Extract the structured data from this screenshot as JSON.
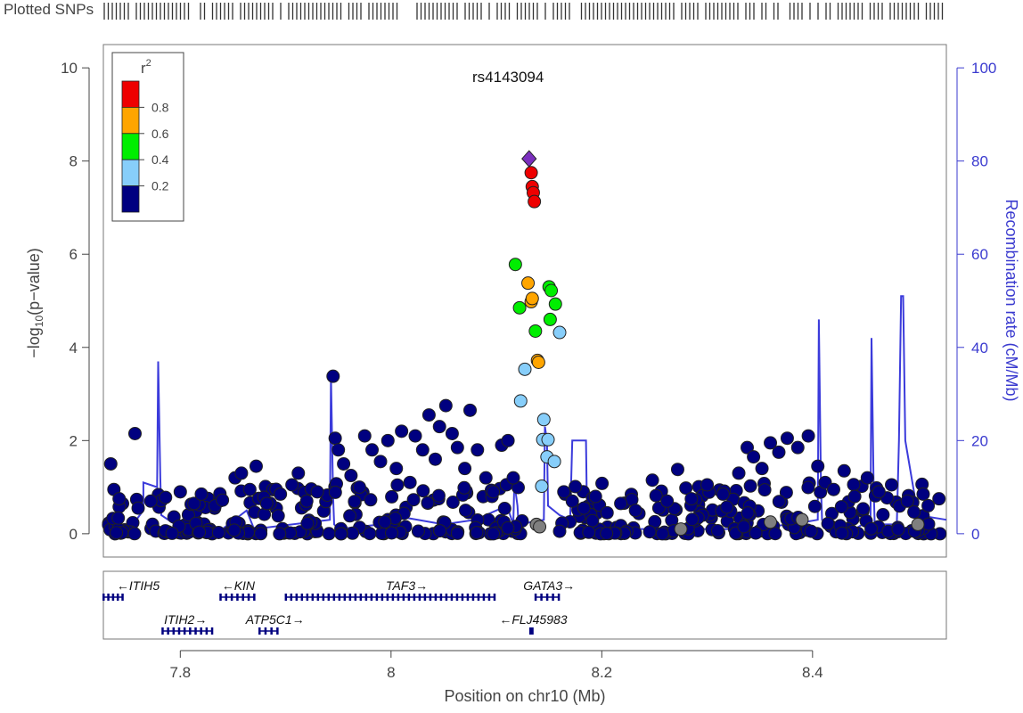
{
  "chart_data": {
    "type": "scatter",
    "title": "rs4143094",
    "xlabel": "Position on chr10 (Mb)",
    "ylabel": "-log10(p-value)",
    "ylabel_right": "Recombination rate (cM/Mb)",
    "xlim": [
      7.727,
      8.527
    ],
    "ylim": [
      -0.5,
      10.5
    ],
    "ylim_right": [
      -5,
      105
    ],
    "x_ticks": [
      7.8,
      8,
      8.2,
      8.4
    ],
    "x_tick_labels": [
      "7.8",
      "8",
      "8.2",
      "8.4"
    ],
    "y_ticks": [
      0,
      2,
      4,
      6,
      8,
      10
    ],
    "y2_ticks": [
      0,
      20,
      40,
      60,
      80,
      100
    ],
    "plotted_snps_label": "Plotted SNPs",
    "index_snp": {
      "name": "rs4143094",
      "x": 8.131,
      "y": 8.05,
      "color": "#7b2fbe",
      "shape": "diamond"
    },
    "legend": {
      "title": "r",
      "title_sup": "2",
      "position": "top-left",
      "bins": [
        {
          "range": [
            0.8,
            1.0
          ],
          "color": "#ee0000"
        },
        {
          "range": [
            0.6,
            0.8
          ],
          "color": "#ffa500"
        },
        {
          "range": [
            0.4,
            0.6
          ],
          "color": "#00ee00"
        },
        {
          "range": [
            0.2,
            0.4
          ],
          "color": "#87cefa"
        },
        {
          "range": [
            0.0,
            0.2
          ],
          "color": "#000080"
        }
      ],
      "tick_labels": [
        "0.8",
        "0.6",
        "0.4",
        "0.2"
      ]
    },
    "colors": {
      "r2_08_10": "#ee0000",
      "r2_06_08": "#ffa500",
      "r2_04_06": "#00ee00",
      "r2_02_04": "#87cefa",
      "r2_00_02": "#000080",
      "no_ld": "#7f7f7f",
      "recombination": "#3b3bdb"
    },
    "highlighted_points": [
      {
        "x": 8.133,
        "y": 7.75,
        "r2_bin": "0.8-1.0"
      },
      {
        "x": 8.134,
        "y": 7.45,
        "r2_bin": "0.8-1.0"
      },
      {
        "x": 8.135,
        "y": 7.32,
        "r2_bin": "0.8-1.0"
      },
      {
        "x": 8.136,
        "y": 7.13,
        "r2_bin": "0.8-1.0"
      },
      {
        "x": 8.13,
        "y": 5.38,
        "r2_bin": "0.6-0.8"
      },
      {
        "x": 8.133,
        "y": 4.98,
        "r2_bin": "0.6-0.8"
      },
      {
        "x": 8.134,
        "y": 5.05,
        "r2_bin": "0.6-0.8"
      },
      {
        "x": 8.139,
        "y": 3.72,
        "r2_bin": "0.6-0.8"
      },
      {
        "x": 8.14,
        "y": 3.68,
        "r2_bin": "0.6-0.8"
      },
      {
        "x": 8.118,
        "y": 5.78,
        "r2_bin": "0.4-0.6"
      },
      {
        "x": 8.122,
        "y": 4.85,
        "r2_bin": "0.4-0.6"
      },
      {
        "x": 8.15,
        "y": 5.3,
        "r2_bin": "0.4-0.6"
      },
      {
        "x": 8.152,
        "y": 5.22,
        "r2_bin": "0.4-0.6"
      },
      {
        "x": 8.156,
        "y": 4.93,
        "r2_bin": "0.4-0.6"
      },
      {
        "x": 8.137,
        "y": 4.35,
        "r2_bin": "0.4-0.6"
      },
      {
        "x": 8.151,
        "y": 4.6,
        "r2_bin": "0.4-0.6"
      },
      {
        "x": 8.16,
        "y": 4.32,
        "r2_bin": "0.2-0.4"
      },
      {
        "x": 8.127,
        "y": 3.53,
        "r2_bin": "0.2-0.4"
      },
      {
        "x": 8.123,
        "y": 2.85,
        "r2_bin": "0.2-0.4"
      },
      {
        "x": 8.145,
        "y": 2.45,
        "r2_bin": "0.2-0.4"
      },
      {
        "x": 8.144,
        "y": 2.02,
        "r2_bin": "0.2-0.4"
      },
      {
        "x": 8.149,
        "y": 2.02,
        "r2_bin": "0.2-0.4"
      },
      {
        "x": 8.148,
        "y": 1.65,
        "r2_bin": "0.2-0.4"
      },
      {
        "x": 8.155,
        "y": 1.55,
        "r2_bin": "0.2-0.4"
      },
      {
        "x": 8.143,
        "y": 1.02,
        "r2_bin": "0.2-0.4"
      }
    ],
    "low_ld_points": [
      {
        "x": 7.734,
        "y": 1.5
      },
      {
        "x": 7.757,
        "y": 2.15
      },
      {
        "x": 7.737,
        "y": 0.95
      },
      {
        "x": 7.742,
        "y": 0.75
      },
      {
        "x": 7.76,
        "y": 0.55
      },
      {
        "x": 7.772,
        "y": 0.7
      },
      {
        "x": 7.786,
        "y": 0.78
      },
      {
        "x": 7.8,
        "y": 0.9
      },
      {
        "x": 7.813,
        "y": 0.65
      },
      {
        "x": 7.82,
        "y": 0.85
      },
      {
        "x": 7.833,
        "y": 0.6
      },
      {
        "x": 7.84,
        "y": 0.72
      },
      {
        "x": 7.852,
        "y": 1.2
      },
      {
        "x": 7.858,
        "y": 1.3
      },
      {
        "x": 7.866,
        "y": 0.95
      },
      {
        "x": 7.872,
        "y": 1.45
      },
      {
        "x": 7.882,
        "y": 0.65
      },
      {
        "x": 7.895,
        "y": 0.85
      },
      {
        "x": 7.906,
        "y": 1.05
      },
      {
        "x": 7.912,
        "y": 1.3
      },
      {
        "x": 7.92,
        "y": 0.7
      },
      {
        "x": 7.93,
        "y": 0.9
      },
      {
        "x": 7.945,
        "y": 3.38
      },
      {
        "x": 7.947,
        "y": 2.05
      },
      {
        "x": 7.95,
        "y": 1.8
      },
      {
        "x": 7.955,
        "y": 1.5
      },
      {
        "x": 7.962,
        "y": 1.25
      },
      {
        "x": 7.97,
        "y": 1.0
      },
      {
        "x": 7.975,
        "y": 2.1
      },
      {
        "x": 7.982,
        "y": 1.8
      },
      {
        "x": 7.99,
        "y": 1.55
      },
      {
        "x": 7.997,
        "y": 2.0
      },
      {
        "x": 8.005,
        "y": 1.4
      },
      {
        "x": 8.01,
        "y": 2.2
      },
      {
        "x": 8.018,
        "y": 1.1
      },
      {
        "x": 8.023,
        "y": 2.1
      },
      {
        "x": 8.03,
        "y": 1.8
      },
      {
        "x": 8.036,
        "y": 2.55
      },
      {
        "x": 8.042,
        "y": 1.6
      },
      {
        "x": 8.046,
        "y": 2.3
      },
      {
        "x": 8.052,
        "y": 2.75
      },
      {
        "x": 8.058,
        "y": 2.15
      },
      {
        "x": 8.063,
        "y": 1.85
      },
      {
        "x": 8.07,
        "y": 1.4
      },
      {
        "x": 8.075,
        "y": 2.65
      },
      {
        "x": 8.082,
        "y": 1.8
      },
      {
        "x": 8.09,
        "y": 1.2
      },
      {
        "x": 8.097,
        "y": 0.9
      },
      {
        "x": 8.105,
        "y": 1.9
      },
      {
        "x": 8.111,
        "y": 2.0
      },
      {
        "x": 8.116,
        "y": 1.2
      },
      {
        "x": 8.164,
        "y": 0.9
      },
      {
        "x": 8.172,
        "y": 0.7
      },
      {
        "x": 8.183,
        "y": 0.55
      },
      {
        "x": 8.194,
        "y": 0.8
      },
      {
        "x": 8.205,
        "y": 0.45
      },
      {
        "x": 8.218,
        "y": 0.65
      },
      {
        "x": 8.232,
        "y": 0.5
      },
      {
        "x": 8.248,
        "y": 1.15
      },
      {
        "x": 8.262,
        "y": 0.7
      },
      {
        "x": 8.272,
        "y": 1.38
      },
      {
        "x": 8.285,
        "y": 0.75
      },
      {
        "x": 8.3,
        "y": 1.05
      },
      {
        "x": 8.315,
        "y": 0.85
      },
      {
        "x": 8.33,
        "y": 1.3
      },
      {
        "x": 8.338,
        "y": 1.85
      },
      {
        "x": 8.344,
        "y": 1.65
      },
      {
        "x": 8.352,
        "y": 1.4
      },
      {
        "x": 8.36,
        "y": 1.95
      },
      {
        "x": 8.368,
        "y": 1.75
      },
      {
        "x": 8.376,
        "y": 2.05
      },
      {
        "x": 8.386,
        "y": 1.85
      },
      {
        "x": 8.396,
        "y": 2.1
      },
      {
        "x": 8.405,
        "y": 1.45
      },
      {
        "x": 8.412,
        "y": 1.1
      },
      {
        "x": 8.42,
        "y": 0.95
      },
      {
        "x": 8.43,
        "y": 1.35
      },
      {
        "x": 8.44,
        "y": 0.8
      },
      {
        "x": 8.452,
        "y": 1.2
      },
      {
        "x": 8.463,
        "y": 0.9
      },
      {
        "x": 8.475,
        "y": 1.05
      },
      {
        "x": 8.49,
        "y": 0.7
      },
      {
        "x": 8.505,
        "y": 0.85
      },
      {
        "x": 8.52,
        "y": 0.75
      }
    ],
    "grey_points": [
      {
        "x": 8.138,
        "y": 0.2
      },
      {
        "x": 8.141,
        "y": 0.15
      },
      {
        "x": 8.275,
        "y": 0.1
      },
      {
        "x": 8.36,
        "y": 0.25
      },
      {
        "x": 8.39,
        "y": 0.3
      },
      {
        "x": 8.5,
        "y": 0.2
      }
    ],
    "recombination_rate": {
      "x": [
        7.727,
        7.755,
        7.765,
        7.765,
        7.778,
        7.779,
        7.781,
        7.782,
        7.795,
        7.84,
        7.863,
        7.87,
        7.942,
        7.943,
        7.945,
        7.946,
        7.95,
        7.99,
        8.0,
        8.05,
        8.08,
        8.11,
        8.116,
        8.117,
        8.12,
        8.121,
        8.145,
        8.146,
        8.148,
        8.149,
        8.16,
        8.17,
        8.172,
        8.185,
        8.186,
        8.21,
        8.26,
        8.3,
        8.33,
        8.38,
        8.405,
        8.406,
        8.408,
        8.409,
        8.44,
        8.455,
        8.456,
        8.458,
        8.459,
        8.48,
        8.482,
        8.484,
        8.486,
        8.488,
        8.5,
        8.527
      ],
      "y": [
        1,
        2,
        5,
        11,
        10,
        37,
        12,
        4,
        2,
        1,
        5,
        1,
        3,
        34,
        8,
        2,
        1,
        2,
        4,
        2,
        3,
        6,
        2,
        11,
        6,
        2,
        3,
        23,
        20,
        6,
        4,
        3,
        20,
        20,
        3,
        1,
        1,
        1,
        1,
        2,
        3,
        46,
        10,
        3,
        1,
        3,
        42,
        10,
        2,
        2,
        20,
        51,
        51,
        20,
        4,
        3
      ]
    },
    "genes": [
      {
        "name": "ITIH5",
        "start": 7.727,
        "end": 7.745,
        "strand": "-",
        "row": 0,
        "label_x": 7.76
      },
      {
        "name": "KIN",
        "start": 7.838,
        "end": 7.87,
        "strand": "-",
        "row": 0,
        "label_x": 7.855
      },
      {
        "name": "TAF3",
        "start": 7.9,
        "end": 8.098,
        "strand": "+",
        "row": 0,
        "label_x": 8.015
      },
      {
        "name": "GATA3",
        "start": 8.137,
        "end": 8.159,
        "strand": "+",
        "row": 0,
        "label_x": 8.15
      },
      {
        "name": "ITIH2",
        "start": 7.783,
        "end": 7.83,
        "strand": "+",
        "row": 1,
        "label_x": 7.805
      },
      {
        "name": "ATP5C1",
        "start": 7.875,
        "end": 7.892,
        "strand": "+",
        "row": 1,
        "label_x": 7.89
      },
      {
        "name": "FLJ45983",
        "start": 8.132,
        "end": 8.134,
        "strand": "-",
        "row": 1,
        "label_x": 8.135
      }
    ]
  }
}
